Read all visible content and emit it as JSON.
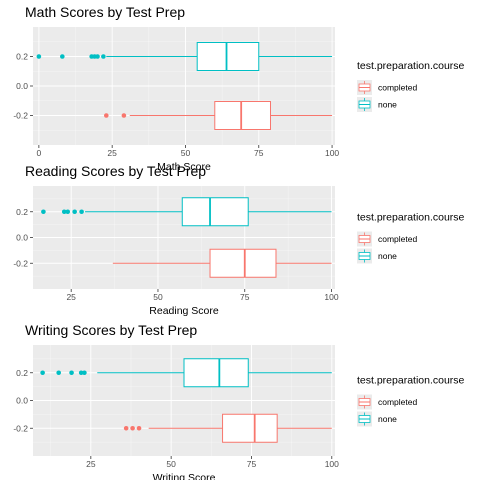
{
  "colors": {
    "completed": "#F8766D",
    "none": "#00BFC4",
    "panel_bg": "#EBEBEB",
    "grid_major": "#FFFFFF",
    "tick_text": "#4D4D4D"
  },
  "legend": {
    "title": "test.preparation.course",
    "entries": [
      {
        "key": "completed",
        "label": "completed"
      },
      {
        "key": "none",
        "label": "none"
      }
    ],
    "placement": "right"
  },
  "chart_data": [
    {
      "type": "boxplot",
      "title": "Math Scores by Test Prep",
      "xlabel": "Math Score",
      "ylabel": "",
      "xlim": [
        -2,
        101
      ],
      "ylim": [
        -0.4,
        0.4
      ],
      "x_ticks": [
        0,
        25,
        50,
        75,
        100
      ],
      "y_ticks": [
        0.2,
        0.0,
        -0.2
      ],
      "y_tick_labels": [
        "0.2",
        "0.0",
        "-0.2"
      ],
      "grid": true,
      "series": [
        {
          "name": "none",
          "y": 0.2,
          "whisker_low": 23,
          "q1": 54,
          "median": 64,
          "q3": 75,
          "whisker_high": 100,
          "outliers": [
            0,
            8,
            18,
            19,
            20,
            22
          ]
        },
        {
          "name": "completed",
          "y": -0.2,
          "whisker_low": 31,
          "q1": 60,
          "median": 69,
          "q3": 79,
          "whisker_high": 100,
          "outliers": [
            23,
            29
          ]
        }
      ]
    },
    {
      "type": "boxplot",
      "title": "Reading Scores by Test Prep",
      "xlabel": "Reading Score",
      "ylabel": "",
      "xlim": [
        14,
        101
      ],
      "ylim": [
        -0.4,
        0.4
      ],
      "x_ticks": [
        25,
        50,
        75,
        100
      ],
      "y_ticks": [
        0.2,
        0.0,
        -0.2
      ],
      "y_tick_labels": [
        "0.2",
        "0.0",
        "-0.2"
      ],
      "grid": true,
      "series": [
        {
          "name": "none",
          "y": 0.2,
          "whisker_low": 29,
          "q1": 57,
          "median": 65,
          "q3": 76,
          "whisker_high": 100,
          "outliers": [
            17,
            23,
            24,
            26,
            28
          ]
        },
        {
          "name": "completed",
          "y": -0.2,
          "whisker_low": 37,
          "q1": 65,
          "median": 75,
          "q3": 84,
          "whisker_high": 100,
          "outliers": []
        }
      ]
    },
    {
      "type": "boxplot",
      "title": "Writing Scores by Test Prep",
      "xlabel": "Writing Score",
      "ylabel": "",
      "xlim": [
        7,
        101
      ],
      "ylim": [
        -0.4,
        0.4
      ],
      "x_ticks": [
        25,
        50,
        75,
        100
      ],
      "y_ticks": [
        0.2,
        0.0,
        -0.2
      ],
      "y_tick_labels": [
        "0.2",
        "0.0",
        "-0.2"
      ],
      "grid": true,
      "series": [
        {
          "name": "none",
          "y": 0.2,
          "whisker_low": 27,
          "q1": 54,
          "median": 65,
          "q3": 74,
          "whisker_high": 100,
          "outliers": [
            10,
            15,
            19,
            22,
            23
          ]
        },
        {
          "name": "completed",
          "y": -0.2,
          "whisker_low": 43,
          "q1": 66,
          "median": 76,
          "q3": 83,
          "whisker_high": 100,
          "outliers": [
            36,
            38,
            40
          ]
        }
      ]
    }
  ]
}
